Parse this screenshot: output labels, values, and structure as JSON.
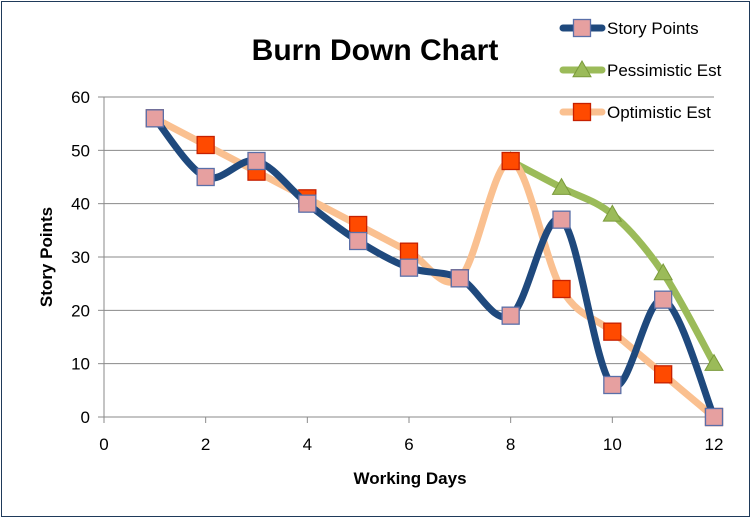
{
  "chart_data": {
    "type": "line",
    "title": "Burn Down Chart",
    "xlabel": "Working Days",
    "ylabel": "Story Points",
    "xlim": [
      0,
      12
    ],
    "ylim": [
      0,
      60
    ],
    "xticks": [
      0,
      2,
      4,
      6,
      8,
      10,
      12
    ],
    "yticks": [
      0,
      10,
      20,
      30,
      40,
      50,
      60
    ],
    "grid": "horizontal",
    "legend": "top-right",
    "series": [
      {
        "name": "Story Points",
        "color": "#1f497d",
        "marker": "square",
        "marker_color": "#e6a0a0",
        "x": [
          1,
          2,
          3,
          4,
          5,
          6,
          7,
          8,
          9,
          10,
          11,
          12
        ],
        "y": [
          56,
          45,
          48,
          40,
          33,
          28,
          26,
          19,
          37,
          6,
          22,
          0
        ]
      },
      {
        "name": "Pessimistic Est",
        "color": "#9bbb59",
        "marker": "triangle",
        "marker_color": "#9bbb59",
        "x": [
          8,
          9,
          10,
          11,
          12
        ],
        "y": [
          48,
          43,
          38,
          27,
          10
        ]
      },
      {
        "name": "Optimistic Est",
        "color": "#fac090",
        "marker": "square",
        "marker_color": "#ff4a00",
        "x": [
          1,
          2,
          3,
          4,
          5,
          6,
          7,
          8,
          9,
          10,
          11,
          12
        ],
        "y": [
          56,
          51,
          46,
          41,
          36,
          31,
          26,
          48,
          24,
          16,
          8,
          0
        ]
      }
    ]
  }
}
